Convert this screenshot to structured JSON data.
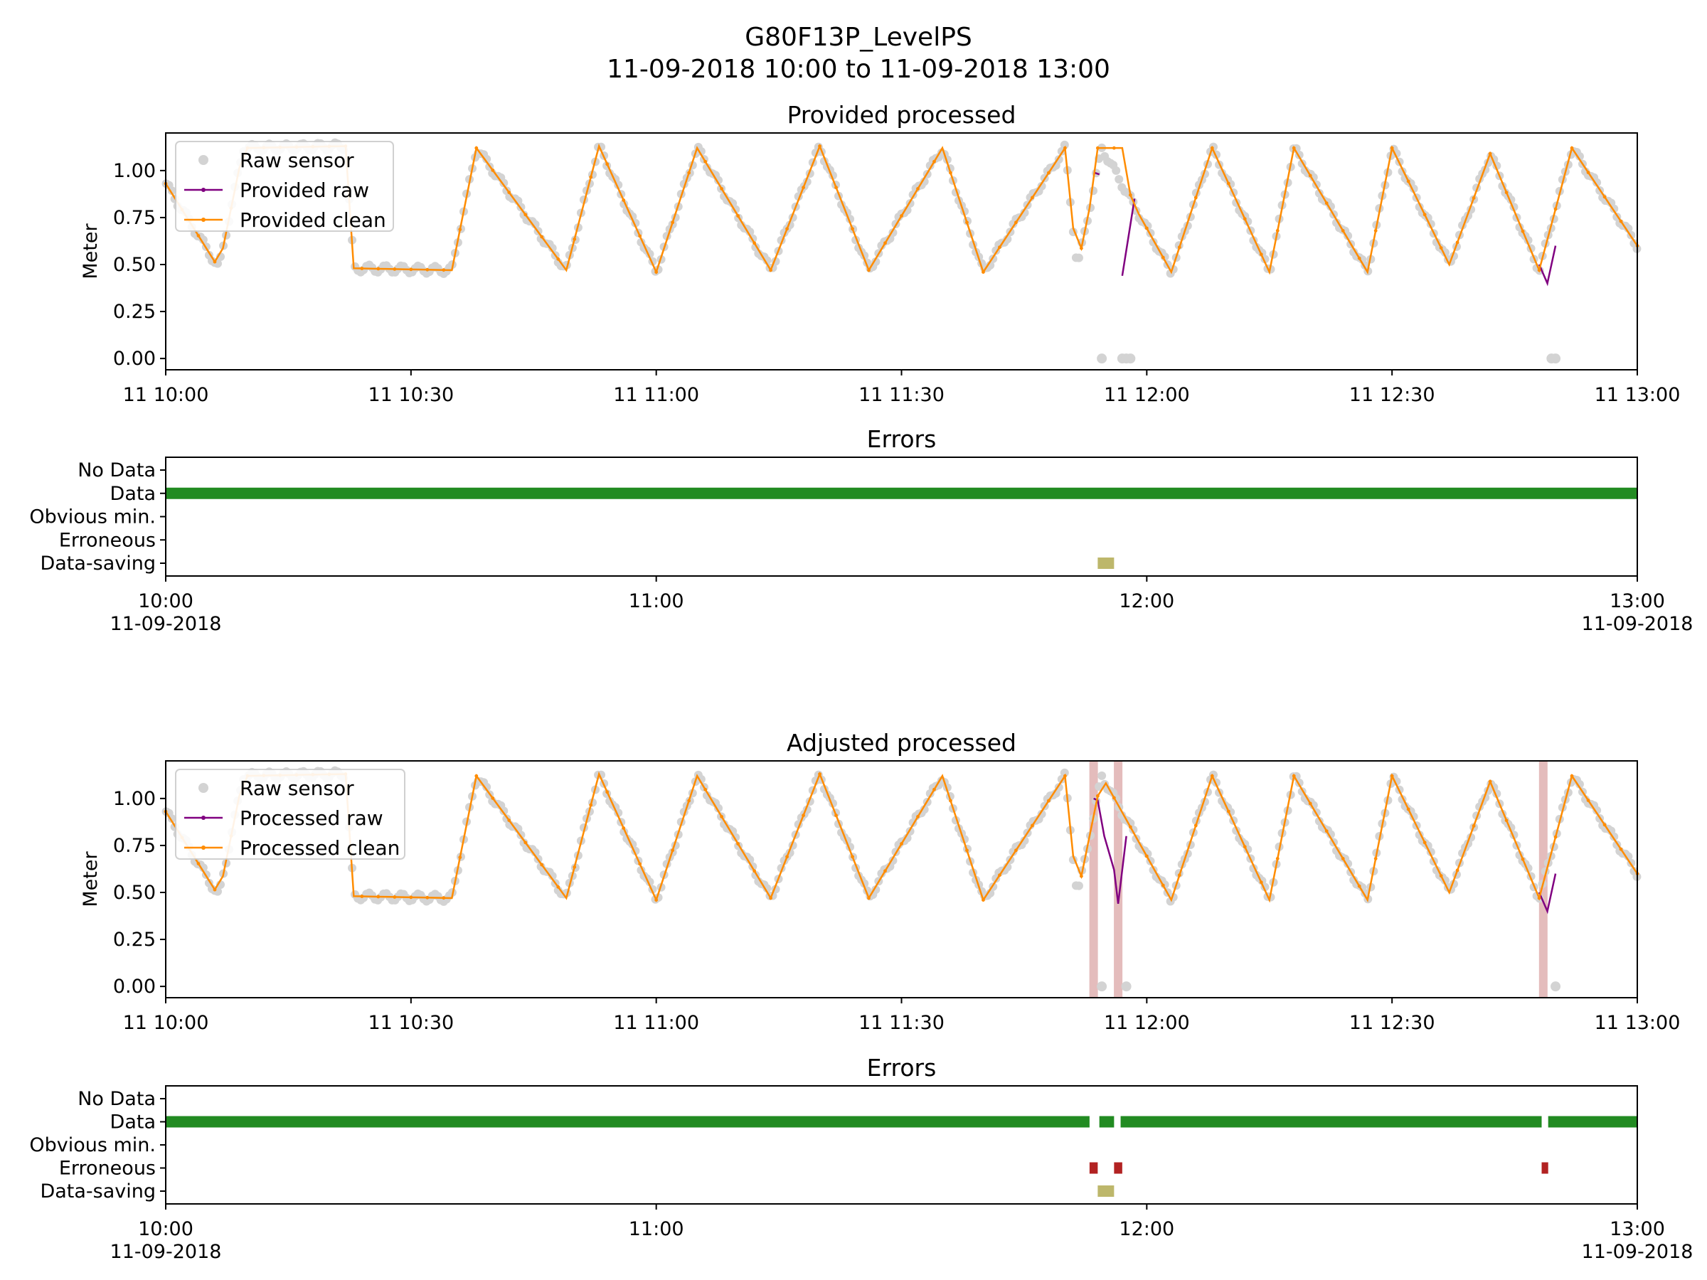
{
  "title": "G80F13P_LevelPS",
  "subtitle": "11-09-2018 10:00 to 11-09-2018 13:00",
  "chart_data": [
    {
      "type": "line",
      "title": "Provided processed",
      "ylabel": "Meter",
      "xlim_minutes": [
        0,
        180
      ],
      "ylim": [
        -0.06,
        1.2
      ],
      "yticks": [
        0.0,
        0.25,
        0.5,
        0.75,
        1.0
      ],
      "ytick_labels": [
        "0.00",
        "0.25",
        "0.50",
        "0.75",
        "1.00"
      ],
      "xtick_labels": [
        "11 10:00",
        "11 10:30",
        "11 11:00",
        "11 11:30",
        "11 12:00",
        "11 12:30",
        "11 13:00"
      ],
      "legend": [
        "Raw sensor",
        "Provided raw",
        "Provided clean"
      ],
      "legend_location": "upper-left",
      "colors": {
        "raw_sensor": "#d3d3d3",
        "raw": "#800080",
        "clean": "#ff8c00"
      },
      "x_unit": "minutes after 11-09-2018 10:00",
      "sawtooth_peaks": [
        [
          -1,
          1.0
        ],
        [
          9.5,
          1.12
        ],
        [
          22,
          1.13
        ],
        [
          38,
          1.12
        ],
        [
          53,
          1.13
        ],
        [
          65,
          1.12
        ],
        [
          80,
          1.13
        ],
        [
          95,
          1.12
        ],
        [
          110,
          1.12
        ],
        [
          114.5,
          1.12
        ],
        [
          128,
          1.12
        ],
        [
          138,
          1.12
        ],
        [
          150,
          1.12
        ],
        [
          162,
          1.09
        ],
        [
          172,
          1.12
        ]
      ],
      "sawtooth_troughs": [
        [
          6.5,
          0.48
        ],
        [
          23,
          0.48
        ],
        [
          35,
          0.47
        ],
        [
          49,
          0.47
        ],
        [
          60,
          0.46
        ],
        [
          74,
          0.47
        ],
        [
          86,
          0.47
        ],
        [
          100,
          0.46
        ],
        [
          111.5,
          0.48
        ],
        [
          123,
          0.46
        ],
        [
          135,
          0.46
        ],
        [
          147,
          0.46
        ],
        [
          157,
          0.5
        ],
        [
          168,
          0.47
        ],
        [
          180,
          0.6
        ]
      ],
      "raw_gaps": [
        [
          113.5,
          0.99
        ],
        [
          117,
          0.44
        ],
        [
          118.5,
          0.85
        ],
        [
          169,
          0.4
        ]
      ],
      "raw_sensor_zero_minutes": [
        114.5,
        117,
        117.5,
        118,
        169.5,
        170
      ]
    },
    {
      "type": "errors",
      "title": "Errors",
      "categories": [
        "No Data",
        "Data",
        "Obvious min.",
        "Erroneous",
        "Data-saving"
      ],
      "xlim_minutes": [
        0,
        180
      ],
      "xtick_labels": [
        "10:00\n11-09-2018",
        "11:00",
        "12:00",
        "13:00\n11-09-2018"
      ],
      "colors": {
        "Data": "#228b22",
        "Erroneous": "#b22222",
        "Data-saving": "#bdb76b"
      },
      "segments": {
        "Data": [
          [
            0,
            180
          ]
        ],
        "Data-saving": [
          [
            114,
            116
          ]
        ]
      }
    },
    {
      "type": "line",
      "title": "Adjusted processed",
      "ylabel": "Meter",
      "xlim_minutes": [
        0,
        180
      ],
      "ylim": [
        -0.06,
        1.2
      ],
      "yticks": [
        0.0,
        0.25,
        0.5,
        0.75,
        1.0
      ],
      "ytick_labels": [
        "0.00",
        "0.25",
        "0.50",
        "0.75",
        "1.00"
      ],
      "xtick_labels": [
        "11 10:00",
        "11 10:30",
        "11 11:00",
        "11 11:30",
        "11 12:00",
        "11 12:30",
        "11 13:00"
      ],
      "legend": [
        "Raw sensor",
        "Processed raw",
        "Processed clean"
      ],
      "legend_location": "upper-left",
      "colors": {
        "raw_sensor": "#d3d3d3",
        "raw": "#800080",
        "clean": "#ff8c00",
        "error_band": "#e4bcbc"
      },
      "error_bands_minutes": [
        113.5,
        116.5,
        168.5
      ],
      "raw_dips": [
        [
          113.5,
          1.0
        ],
        [
          114,
          0.99
        ],
        [
          114.8,
          0.8
        ],
        [
          116,
          0.62
        ],
        [
          116.5,
          0.44
        ],
        [
          117.5,
          0.8
        ],
        [
          169,
          0.4
        ]
      ]
    },
    {
      "type": "errors",
      "title": "Errors",
      "categories": [
        "No Data",
        "Data",
        "Obvious min.",
        "Erroneous",
        "Data-saving"
      ],
      "xlim_minutes": [
        0,
        180
      ],
      "xtick_labels": [
        "10:00\n11-09-2018",
        "11:00",
        "12:00",
        "13:00\n11-09-2018"
      ],
      "colors": {
        "Data": "#228b22",
        "Erroneous": "#b22222",
        "Data-saving": "#bdb76b"
      },
      "segments": {
        "Data": [
          [
            0,
            113
          ],
          [
            114.2,
            116
          ],
          [
            116.8,
            168.3
          ],
          [
            169.1,
            180
          ]
        ],
        "Erroneous": [
          [
            113,
            114
          ],
          [
            116,
            117
          ],
          [
            168.3,
            169.1
          ]
        ],
        "Data-saving": [
          [
            114,
            116
          ]
        ]
      }
    }
  ]
}
